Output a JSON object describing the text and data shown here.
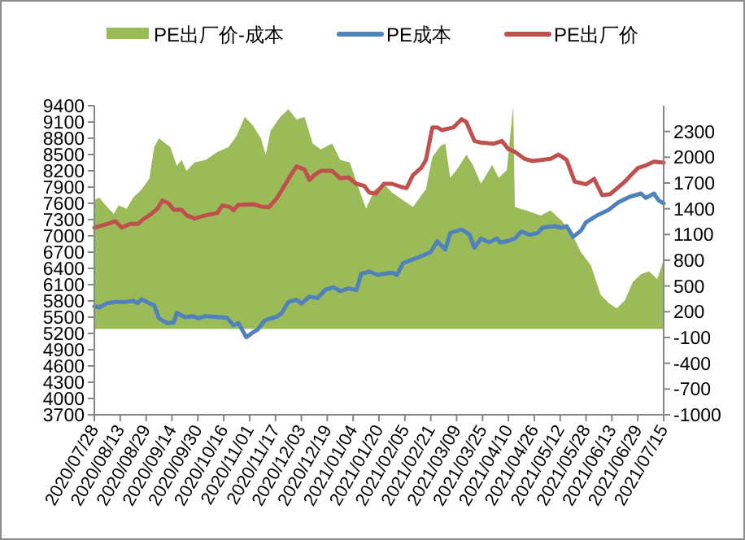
{
  "chart_data": {
    "type": "line",
    "legend": "top",
    "xlim": [
      "2020-07-28",
      "2021-07-15"
    ],
    "xticks": [
      {
        "value": "2020-07-28",
        "label": "2020/07/28"
      },
      {
        "value": "2020-08-13",
        "label": "2020/08/13"
      },
      {
        "value": "2020-08-29",
        "label": "2020/08/29"
      },
      {
        "value": "2020-09-14",
        "label": "2020/09/14"
      },
      {
        "value": "2020-09-30",
        "label": "2020/09/30"
      },
      {
        "value": "2020-10-16",
        "label": "2020/10/16"
      },
      {
        "value": "2020-11-01",
        "label": "2020/11/01"
      },
      {
        "value": "2020-11-17",
        "label": "2020/11/17"
      },
      {
        "value": "2020-12-03",
        "label": "2020/12/03"
      },
      {
        "value": "2020-12-19",
        "label": "2020/12/19"
      },
      {
        "value": "2021-01-04",
        "label": "2021/01/04"
      },
      {
        "value": "2021-01-20",
        "label": "2021/01/20"
      },
      {
        "value": "2021-02-05",
        "label": "2021/02/05"
      },
      {
        "value": "2021-02-21",
        "label": "2021/02/21"
      },
      {
        "value": "2021-03-09",
        "label": "2021/03/09"
      },
      {
        "value": "2021-03-25",
        "label": "2021/03/25"
      },
      {
        "value": "2021-04-10",
        "label": "2021/04/10"
      },
      {
        "value": "2021-04-26",
        "label": "2021/04/26"
      },
      {
        "value": "2021-05-12",
        "label": "2021/05/12"
      },
      {
        "value": "2021-05-28",
        "label": "2021/05/28"
      },
      {
        "value": "2021-06-13",
        "label": "2021/06/13"
      },
      {
        "value": "2021-06-29",
        "label": "2021/06/29"
      },
      {
        "value": "2021-07-15",
        "label": "2021/07/15"
      }
    ],
    "ylim": [
      3700,
      9400
    ],
    "yticks": [
      3700,
      4000,
      4300,
      4600,
      4900,
      5200,
      5500,
      5800,
      6100,
      6400,
      6700,
      7000,
      7300,
      7600,
      7900,
      8200,
      8500,
      8800,
      9100,
      9400
    ],
    "y2lim": [
      -1000,
      2600
    ],
    "y2ticks": [
      -1000,
      -700,
      -400,
      -100,
      200,
      500,
      800,
      1100,
      1400,
      1700,
      2000,
      2300
    ],
    "series": [
      {
        "name": "PE出厂价-成本",
        "type": "area",
        "axis": "y2",
        "color": "#9bbb59",
        "x": [
          "2020-07-28",
          "2020-07-31",
          "2020-08-04",
          "2020-08-09",
          "2020-08-12",
          "2020-08-17",
          "2020-08-21",
          "2020-08-26",
          "2020-08-31",
          "2020-09-03",
          "2020-09-06",
          "2020-09-10",
          "2020-09-13",
          "2020-09-17",
          "2020-09-20",
          "2020-09-23",
          "2020-09-28",
          "2020-10-05",
          "2020-10-12",
          "2020-10-19",
          "2020-10-24",
          "2020-10-29",
          "2020-11-03",
          "2020-11-08",
          "2020-11-11",
          "2020-11-14",
          "2020-11-20",
          "2020-11-25",
          "2020-11-30",
          "2020-12-05",
          "2020-12-10",
          "2020-12-15",
          "2020-12-22",
          "2020-12-27",
          "2021-01-02",
          "2021-01-07",
          "2021-01-12",
          "2021-01-17",
          "2021-01-23",
          "2021-01-28",
          "2021-02-03",
          "2021-02-10",
          "2021-02-18",
          "2021-02-22",
          "2021-02-27",
          "2021-03-02",
          "2021-03-05",
          "2021-03-10",
          "2021-03-15",
          "2021-03-19",
          "2021-03-24",
          "2021-03-31",
          "2021-04-04",
          "2021-04-09",
          "2021-04-13",
          "2021-04-14",
          "2021-04-21",
          "2021-04-30",
          "2021-05-06",
          "2021-05-13",
          "2021-05-20",
          "2021-05-25",
          "2021-05-31",
          "2021-06-06",
          "2021-06-11",
          "2021-06-16",
          "2021-06-21",
          "2021-06-26",
          "2021-07-01",
          "2021-07-06",
          "2021-07-11",
          "2021-07-15"
        ],
        "values": [
          1500,
          1530,
          1440,
          1340,
          1440,
          1400,
          1530,
          1620,
          1750,
          2120,
          2220,
          2160,
          2120,
          1900,
          1970,
          1840,
          1940,
          1970,
          2060,
          2120,
          2250,
          2470,
          2370,
          2220,
          2030,
          2310,
          2470,
          2560,
          2440,
          2470,
          2160,
          2090,
          2160,
          1970,
          1940,
          1660,
          1400,
          1620,
          1690,
          1590,
          1510,
          1420,
          1630,
          2000,
          2130,
          2160,
          1760,
          1880,
          2030,
          1910,
          1690,
          1910,
          1760,
          1850,
          2600,
          1420,
          1380,
          1320,
          1380,
          1260,
          1080,
          890,
          740,
          400,
          300,
          240,
          330,
          550,
          640,
          670,
          580,
          800
        ]
      },
      {
        "name": "PE成本",
        "color": "#4f81bd",
        "x": [
          "2020-07-28",
          "2020-07-31",
          "2020-08-05",
          "2020-08-10",
          "2020-08-16",
          "2020-08-21",
          "2020-08-24",
          "2020-08-26",
          "2020-08-31",
          "2020-09-03",
          "2020-09-06",
          "2020-09-11",
          "2020-09-15",
          "2020-09-17",
          "2020-09-22",
          "2020-09-27",
          "2020-09-30",
          "2020-10-05",
          "2020-10-13",
          "2020-10-18",
          "2020-10-22",
          "2020-10-25",
          "2020-10-30",
          "2020-11-03",
          "2020-11-06",
          "2020-11-10",
          "2020-11-13",
          "2020-11-18",
          "2020-11-21",
          "2020-11-25",
          "2020-11-30",
          "2020-12-03",
          "2020-12-08",
          "2020-12-13",
          "2020-12-18",
          "2020-12-23",
          "2020-12-27",
          "2021-01-01",
          "2021-01-06",
          "2021-01-09",
          "2021-01-14",
          "2021-01-19",
          "2021-01-28",
          "2021-01-31",
          "2021-02-04",
          "2021-02-13",
          "2021-02-21",
          "2021-02-25",
          "2021-03-02",
          "2021-03-05",
          "2021-03-12",
          "2021-03-17",
          "2021-03-20",
          "2021-03-24",
          "2021-03-29",
          "2021-04-03",
          "2021-04-05",
          "2021-04-09",
          "2021-04-14",
          "2021-04-18",
          "2021-04-23",
          "2021-04-28",
          "2021-05-01",
          "2021-05-08",
          "2021-05-13",
          "2021-05-16",
          "2021-05-20",
          "2021-05-25",
          "2021-05-28",
          "2021-06-04",
          "2021-06-11",
          "2021-06-17",
          "2021-06-24",
          "2021-07-01",
          "2021-07-04",
          "2021-07-09",
          "2021-07-12",
          "2021-07-15"
        ],
        "values": [
          5700,
          5680,
          5760,
          5780,
          5780,
          5800,
          5760,
          5830,
          5760,
          5720,
          5480,
          5390,
          5400,
          5580,
          5500,
          5520,
          5480,
          5520,
          5500,
          5490,
          5350,
          5390,
          5130,
          5220,
          5270,
          5430,
          5470,
          5510,
          5580,
          5780,
          5820,
          5750,
          5880,
          5850,
          6010,
          6050,
          5980,
          6030,
          6000,
          6300,
          6340,
          6280,
          6320,
          6280,
          6500,
          6600,
          6700,
          6900,
          6750,
          7050,
          7120,
          7020,
          6780,
          6950,
          6880,
          6950,
          6880,
          6900,
          6950,
          7080,
          7020,
          7050,
          7150,
          7180,
          7150,
          7180,
          6980,
          7100,
          7250,
          7380,
          7480,
          7620,
          7720,
          7780,
          7700,
          7780,
          7650,
          7600
        ]
      },
      {
        "name": "PE出厂价",
        "color": "#c0504d",
        "x": [
          "2020-07-28",
          "2020-08-05",
          "2020-08-10",
          "2020-08-14",
          "2020-08-19",
          "2020-08-24",
          "2020-08-27",
          "2020-09-01",
          "2020-09-05",
          "2020-09-08",
          "2020-09-12",
          "2020-09-15",
          "2020-09-20",
          "2020-09-23",
          "2020-09-28",
          "2020-10-05",
          "2020-10-12",
          "2020-10-15",
          "2020-10-20",
          "2020-10-22",
          "2020-10-25",
          "2020-11-04",
          "2020-11-08",
          "2020-11-13",
          "2020-11-18",
          "2020-11-23",
          "2020-11-26",
          "2020-11-30",
          "2020-12-05",
          "2020-12-08",
          "2020-12-11",
          "2020-12-15",
          "2020-12-22",
          "2020-12-27",
          "2021-01-01",
          "2021-01-06",
          "2021-01-11",
          "2021-01-14",
          "2021-01-18",
          "2021-01-23",
          "2021-01-28",
          "2021-02-03",
          "2021-02-06",
          "2021-02-10",
          "2021-02-15",
          "2021-02-18",
          "2021-02-22",
          "2021-02-25",
          "2021-02-28",
          "2021-03-07",
          "2021-03-12",
          "2021-03-15",
          "2021-03-20",
          "2021-03-24",
          "2021-04-01",
          "2021-04-06",
          "2021-04-10",
          "2021-04-14",
          "2021-04-20",
          "2021-04-25",
          "2021-04-30",
          "2021-05-06",
          "2021-05-11",
          "2021-05-16",
          "2021-05-21",
          "2021-05-28",
          "2021-06-02",
          "2021-06-07",
          "2021-06-12",
          "2021-06-21",
          "2021-06-29",
          "2021-07-04",
          "2021-07-09",
          "2021-07-15"
        ],
        "values": [
          7150,
          7220,
          7270,
          7150,
          7220,
          7220,
          7300,
          7400,
          7500,
          7650,
          7600,
          7480,
          7480,
          7380,
          7320,
          7380,
          7420,
          7560,
          7530,
          7470,
          7570,
          7580,
          7540,
          7530,
          7700,
          7950,
          8100,
          8280,
          8220,
          8030,
          8120,
          8200,
          8200,
          8060,
          8080,
          7960,
          7920,
          7800,
          7780,
          7960,
          7960,
          7900,
          7880,
          8120,
          8250,
          8400,
          9000,
          9000,
          8950,
          9000,
          9150,
          9100,
          8750,
          8720,
          8700,
          8750,
          8600,
          8550,
          8420,
          8380,
          8400,
          8420,
          8500,
          8400,
          8000,
          7950,
          8050,
          7750,
          7770,
          8000,
          8250,
          8300,
          8370,
          8350
        ]
      }
    ]
  }
}
